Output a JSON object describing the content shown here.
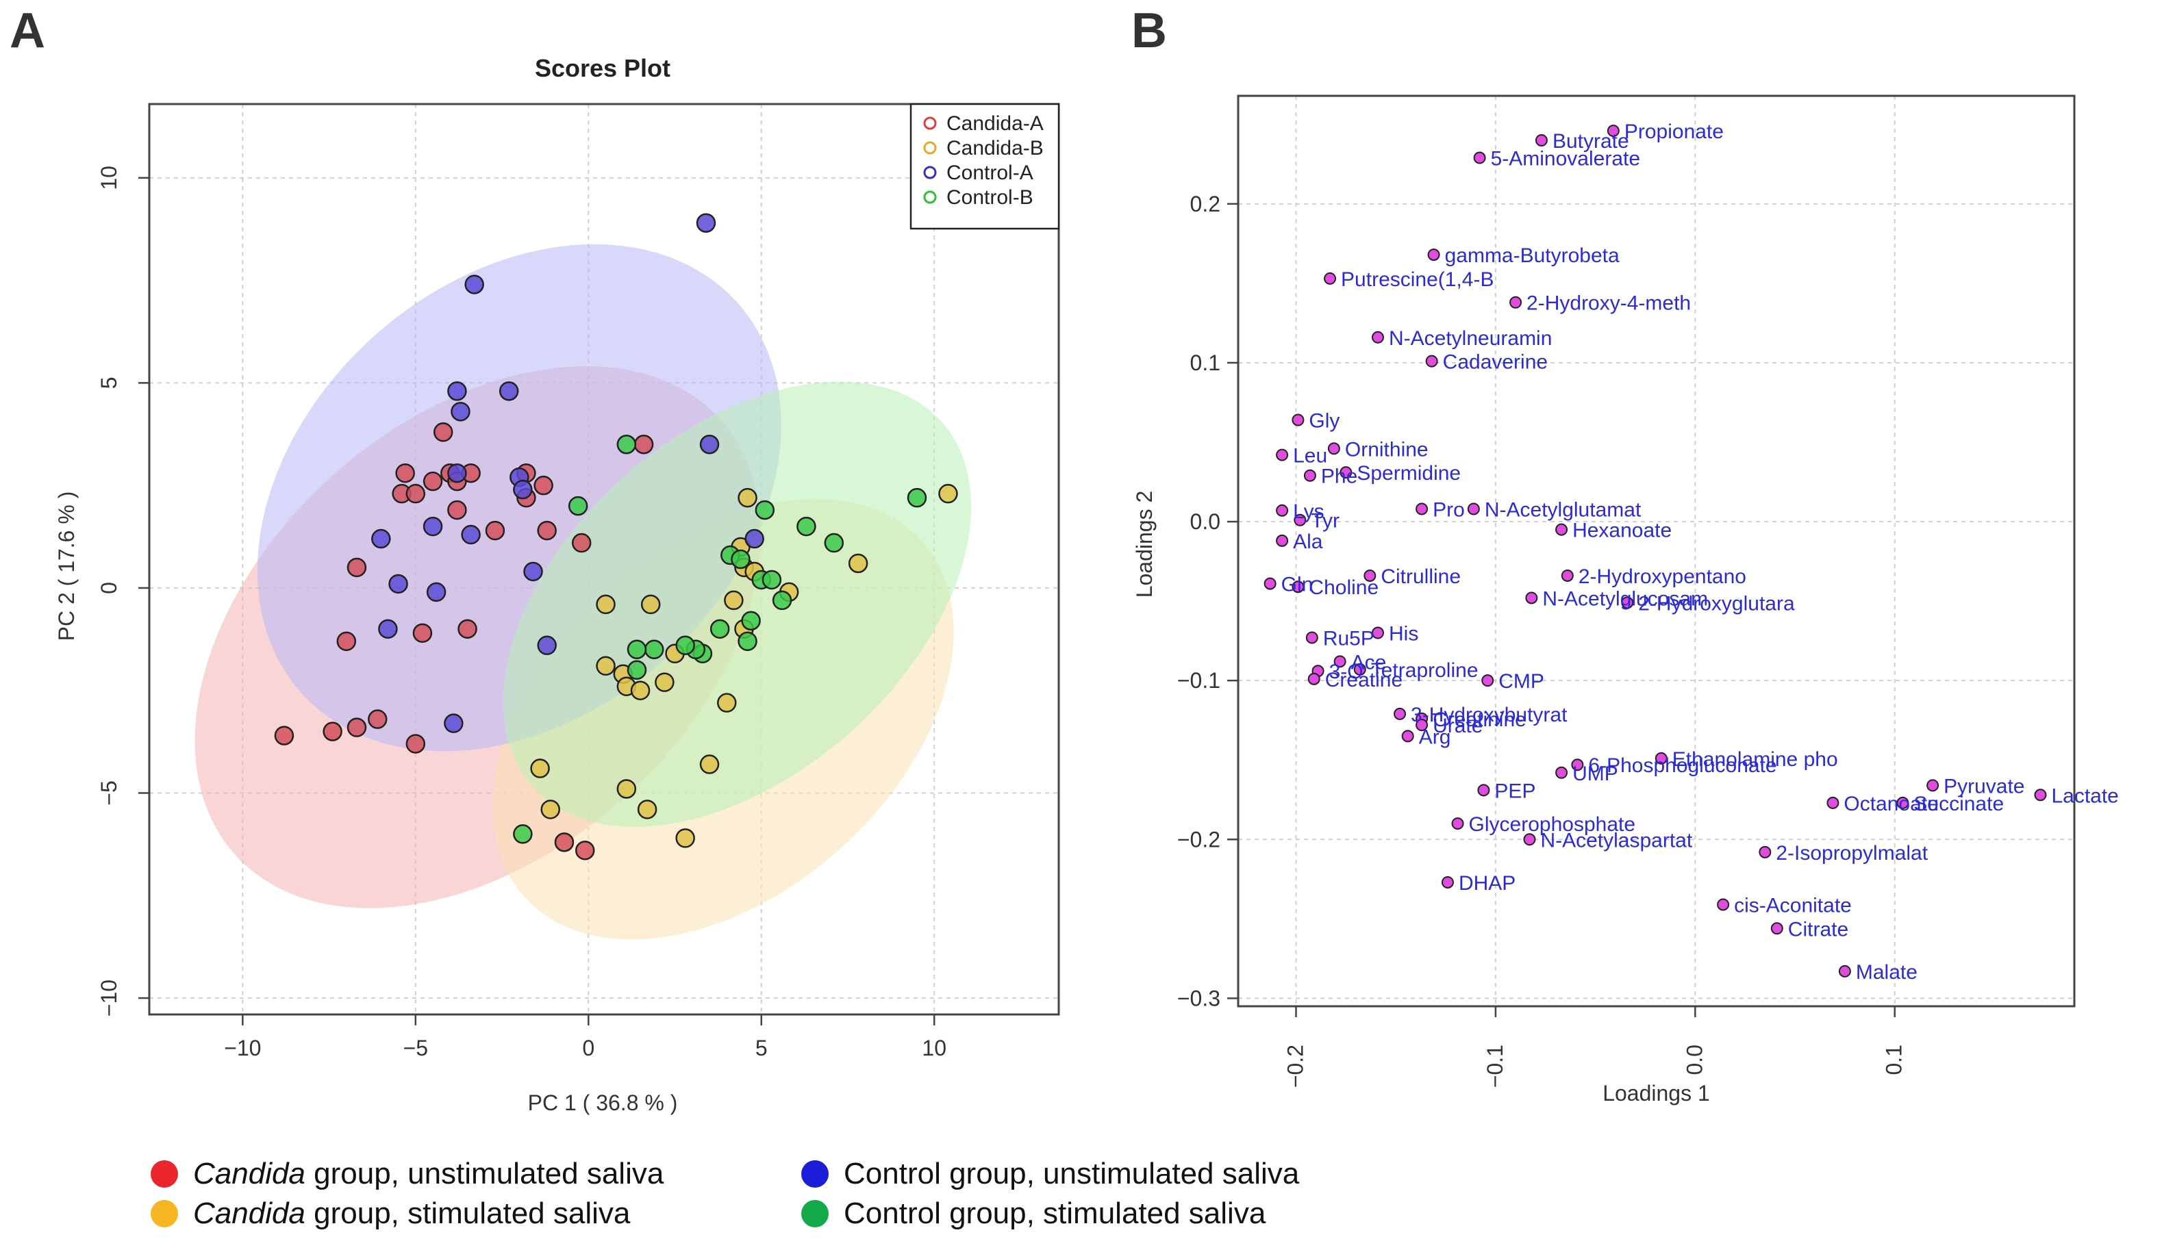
{
  "panel_labels": {
    "a": "A",
    "b": "B"
  },
  "bottom_legend": [
    {
      "italic": "Candida",
      "rest": " group, unstimulated saliva",
      "color": "#e8262b"
    },
    {
      "italic": "Candida",
      "rest": " group, stimulated saliva",
      "color": "#f6b624"
    },
    {
      "italic": "",
      "rest": "Control group, unstimulated saliva",
      "color": "#1c1dd9"
    },
    {
      "italic": "",
      "rest": "Control group, stimulated saliva",
      "color": "#13a94a"
    }
  ],
  "chart_data": [
    {
      "type": "scatter",
      "title": "Scores Plot",
      "xlabel": "PC 1 ( 36.8 % )",
      "ylabel": "PC 2 ( 17.6 % )",
      "xlim": [
        -12.7,
        13.6
      ],
      "ylim": [
        -10.4,
        11.8
      ],
      "xticks": [
        -10,
        -5,
        0,
        5,
        10
      ],
      "yticks": [
        -10,
        -5,
        0,
        5,
        10
      ],
      "xtick_labels": [
        "−10",
        "−5",
        "0",
        "5",
        "10"
      ],
      "ytick_labels": [
        "−10",
        "−5",
        "0",
        "5",
        "10"
      ],
      "grid": true,
      "legend_position": "top-right",
      "series": [
        {
          "name": "Candida-A",
          "color": "#e03c3c",
          "fill": "#d4505a",
          "ellipse": {
            "center": [
              -3.2,
              -1.2
            ],
            "rx": 8.8,
            "ry": 5.6,
            "angle": 37,
            "fill": "#f4b3b3"
          },
          "points": [
            [
              -8.8,
              -3.6
            ],
            [
              -7.4,
              -3.5
            ],
            [
              -6.7,
              -3.4
            ],
            [
              -6.1,
              -3.2
            ],
            [
              -5,
              -3.8
            ],
            [
              -7.0,
              -1.3
            ],
            [
              -6.7,
              0.5
            ],
            [
              -4.8,
              -1.1
            ],
            [
              -3.5,
              -1.0
            ],
            [
              -5.3,
              2.8
            ],
            [
              -5.4,
              2.3
            ],
            [
              -5.0,
              2.3
            ],
            [
              -4.5,
              2.6
            ],
            [
              -4.0,
              2.8
            ],
            [
              -3.8,
              2.6
            ],
            [
              -3.8,
              1.9
            ],
            [
              -4.2,
              3.8
            ],
            [
              -3.4,
              2.8
            ],
            [
              -2.7,
              1.4
            ],
            [
              -1.8,
              2.8
            ],
            [
              -1.8,
              2.2
            ],
            [
              -1.3,
              2.5
            ],
            [
              -1.2,
              1.4
            ],
            [
              -0.2,
              1.1
            ],
            [
              1.6,
              3.5
            ],
            [
              -0.7,
              -6.2
            ],
            [
              -0.1,
              -6.4
            ]
          ]
        },
        {
          "name": "Candida-B",
          "color": "#e6a92c",
          "fill": "#e0c24a",
          "ellipse": {
            "center": [
              3.9,
              -3.2
            ],
            "rx": 7.2,
            "ry": 4.5,
            "angle": 37,
            "fill": "#fbe1b3"
          },
          "points": [
            [
              10.4,
              2.3
            ],
            [
              7.8,
              0.6
            ],
            [
              4.6,
              2.2
            ],
            [
              4.4,
              1.0
            ],
            [
              4.5,
              0.5
            ],
            [
              4.2,
              -0.3
            ],
            [
              4.8,
              0.4
            ],
            [
              5.8,
              -0.1
            ],
            [
              4.5,
              -1.0
            ],
            [
              1.8,
              -0.4
            ],
            [
              0.5,
              -0.4
            ],
            [
              0.5,
              -1.9
            ],
            [
              1.0,
              -2.1
            ],
            [
              1.1,
              -2.4
            ],
            [
              1.5,
              -2.5
            ],
            [
              2.2,
              -2.3
            ],
            [
              2.5,
              -1.6
            ],
            [
              4.0,
              -2.8
            ],
            [
              3.5,
              -4.3
            ],
            [
              1.1,
              -4.9
            ],
            [
              1.7,
              -5.4
            ],
            [
              2.8,
              -6.1
            ],
            [
              -1.4,
              -4.4
            ],
            [
              -1.1,
              -5.4
            ]
          ]
        },
        {
          "name": "Control-A",
          "color": "#3030c8",
          "fill": "#5a4bd6",
          "ellipse": {
            "center": [
              -2.0,
              2.2
            ],
            "rx": 7.9,
            "ry": 5.6,
            "angle": 37,
            "fill": "#b8b8f7"
          },
          "points": [
            [
              3.4,
              8.9
            ],
            [
              -3.3,
              7.4
            ],
            [
              -3.8,
              4.8
            ],
            [
              -3.7,
              4.3
            ],
            [
              -2.3,
              4.8
            ],
            [
              -2.0,
              2.7
            ],
            [
              -1.9,
              2.4
            ],
            [
              -3.8,
              2.8
            ],
            [
              3.5,
              3.5
            ],
            [
              4.8,
              1.2
            ],
            [
              -6.0,
              1.2
            ],
            [
              -4.5,
              1.5
            ],
            [
              -3.4,
              1.3
            ],
            [
              -1.6,
              0.4
            ],
            [
              -5.5,
              0.1
            ],
            [
              -4.4,
              -0.1
            ],
            [
              -5.8,
              -1.0
            ],
            [
              -1.2,
              -1.4
            ],
            [
              -3.9,
              -3.3
            ]
          ]
        },
        {
          "name": "Control-B",
          "color": "#2ec02e",
          "fill": "#3bc94a",
          "ellipse": {
            "center": [
              4.3,
              -0.4
            ],
            "rx": 7.4,
            "ry": 4.4,
            "angle": 37,
            "fill": "#b8f0b5"
          },
          "points": [
            [
              9.5,
              2.2
            ],
            [
              7.1,
              1.1
            ],
            [
              6.3,
              1.5
            ],
            [
              5.1,
              1.9
            ],
            [
              4.1,
              0.8
            ],
            [
              4.4,
              0.7
            ],
            [
              5.0,
              0.2
            ],
            [
              5.3,
              0.2
            ],
            [
              5.6,
              -0.3
            ],
            [
              4.7,
              -0.8
            ],
            [
              4.6,
              -1.3
            ],
            [
              3.8,
              -1.0
            ],
            [
              3.3,
              -1.6
            ],
            [
              3.1,
              -1.5
            ],
            [
              2.8,
              -1.4
            ],
            [
              1.9,
              -1.5
            ],
            [
              1.4,
              -1.5
            ],
            [
              1.4,
              -2.0
            ],
            [
              1.1,
              3.5
            ],
            [
              -0.3,
              2.0
            ],
            [
              -1.9,
              -6.0
            ]
          ]
        }
      ]
    },
    {
      "type": "scatter",
      "title": "",
      "xlabel": "Loadings 1",
      "ylabel": "Loadings 2",
      "xlim": [
        -0.229,
        0.19
      ],
      "ylim": [
        -0.305,
        0.268
      ],
      "xticks": [
        -0.2,
        -0.1,
        0.0,
        0.1
      ],
      "yticks": [
        -0.3,
        -0.2,
        -0.1,
        0.0,
        0.1,
        0.2
      ],
      "xtick_labels": [
        "−0.2",
        "−0.1",
        "0.0",
        "0.1"
      ],
      "ytick_labels": [
        "−0.3",
        "−0.2",
        "−0.1",
        "0.0",
        "0.1",
        "0.2"
      ],
      "grid": true,
      "point_color": "#e14be0",
      "label_color": "#2b2bd6",
      "points": [
        {
          "label": "Propionate",
          "x": -0.041,
          "y": 0.246
        },
        {
          "label": "Butyrate",
          "x": -0.077,
          "y": 0.24
        },
        {
          "label": "5-Aminovalerate",
          "x": -0.108,
          "y": 0.229
        },
        {
          "label": "gamma-Butyrobeta",
          "x": -0.131,
          "y": 0.168
        },
        {
          "label": "Putrescine(1,4-B",
          "x": -0.183,
          "y": 0.153
        },
        {
          "label": "2-Hydroxy-4-meth",
          "x": -0.09,
          "y": 0.138
        },
        {
          "label": "N-Acetylneuramin",
          "x": -0.159,
          "y": 0.116
        },
        {
          "label": "Cadaverine",
          "x": -0.132,
          "y": 0.101
        },
        {
          "label": "Gly",
          "x": -0.199,
          "y": 0.064
        },
        {
          "label": "Leu",
          "x": -0.207,
          "y": 0.042
        },
        {
          "label": "Ornithine",
          "x": -0.181,
          "y": 0.046
        },
        {
          "label": "Phe",
          "x": -0.193,
          "y": 0.029
        },
        {
          "label": "Spermidine",
          "x": -0.175,
          "y": 0.031
        },
        {
          "label": "Lys",
          "x": -0.207,
          "y": 0.007
        },
        {
          "label": "Tyr",
          "x": -0.198,
          "y": 0.001
        },
        {
          "label": "Pro",
          "x": -0.137,
          "y": 0.008
        },
        {
          "label": "N-Acetylglutamat",
          "x": -0.111,
          "y": 0.008
        },
        {
          "label": "Hexanoate",
          "x": -0.067,
          "y": -0.005
        },
        {
          "label": "Ala",
          "x": -0.207,
          "y": -0.012
        },
        {
          "label": "2-Hydroxypentano",
          "x": -0.064,
          "y": -0.034
        },
        {
          "label": "Citrulline",
          "x": -0.163,
          "y": -0.034
        },
        {
          "label": "Gln",
          "x": -0.213,
          "y": -0.039
        },
        {
          "label": "Choline",
          "x": -0.199,
          "y": -0.041
        },
        {
          "label": "N-Acetylglucosam",
          "x": -0.082,
          "y": -0.048
        },
        {
          "label": "2-Hydroxyglutara",
          "x": -0.034,
          "y": -0.051
        },
        {
          "label": "Ru5P",
          "x": -0.192,
          "y": -0.073
        },
        {
          "label": "His",
          "x": -0.159,
          "y": -0.07
        },
        {
          "label": "Ace",
          "x": -0.178,
          "y": -0.088
        },
        {
          "label": "Tetraproline",
          "x": -0.168,
          "y": -0.093
        },
        {
          "label": "3-O",
          "x": -0.189,
          "y": -0.094
        },
        {
          "label": "Creatine",
          "x": -0.191,
          "y": -0.099
        },
        {
          "label": "CMP",
          "x": -0.104,
          "y": -0.1
        },
        {
          "label": "3-Hydroxybutyrat",
          "x": -0.148,
          "y": -0.121
        },
        {
          "label": "Creatinine",
          "x": -0.137,
          "y": -0.124
        },
        {
          "label": "Urate",
          "x": -0.137,
          "y": -0.128
        },
        {
          "label": "Arg",
          "x": -0.144,
          "y": -0.135
        },
        {
          "label": "Ethanolamine pho",
          "x": -0.017,
          "y": -0.149
        },
        {
          "label": "6-Phosphogluconate",
          "x": -0.059,
          "y": -0.153
        },
        {
          "label": "UMP",
          "x": -0.067,
          "y": -0.158
        },
        {
          "label": "PEP",
          "x": -0.106,
          "y": -0.169
        },
        {
          "label": "Pyruvate",
          "x": 0.119,
          "y": -0.166
        },
        {
          "label": "Lactate",
          "x": 0.173,
          "y": -0.172
        },
        {
          "label": "Octanoate",
          "x": 0.069,
          "y": -0.177
        },
        {
          "label": "Succinate",
          "x": 0.104,
          "y": -0.177
        },
        {
          "label": "Glycerophosphate",
          "x": -0.119,
          "y": -0.19
        },
        {
          "label": "N-Acetylaspartat",
          "x": -0.083,
          "y": -0.2
        },
        {
          "label": "2-Isopropylmalat",
          "x": 0.035,
          "y": -0.208
        },
        {
          "label": "DHAP",
          "x": -0.124,
          "y": -0.227
        },
        {
          "label": "cis-Aconitate",
          "x": 0.014,
          "y": -0.241
        },
        {
          "label": "Citrate",
          "x": 0.041,
          "y": -0.256
        },
        {
          "label": "Malate",
          "x": 0.075,
          "y": -0.283
        }
      ]
    }
  ]
}
